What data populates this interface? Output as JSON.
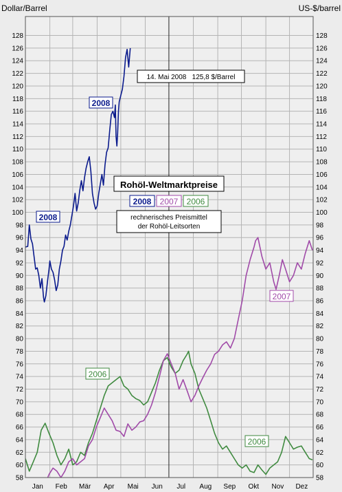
{
  "chart_data": {
    "type": "line",
    "ylabel_left": "Dollar/Barrel",
    "ylabel_right": "US-$/barrel",
    "title": "Rohöl-Weltmarktpreise",
    "legend_labels": [
      "2008",
      "2007",
      "2006"
    ],
    "subtitle_lines": [
      "rechnerisches Preismittel",
      "der Rohöl-Leitsorten"
    ],
    "annotation": "14. Mai 2008   125,8 $/Barrel",
    "ylim": [
      58,
      131
    ],
    "ytick_step": 2,
    "xlim": [
      0,
      365
    ],
    "months": [
      "Jan",
      "Feb",
      "Mär",
      "Apr",
      "Mai",
      "Jun",
      "Jul",
      "Aug",
      "Sep",
      "Okt",
      "Nov",
      "Dez"
    ],
    "series_labels": {
      "y2008_a": "2008",
      "y2008_b": "2008",
      "y2007": "2007",
      "y2006_a": "2006",
      "y2006_b": "2006"
    },
    "colors": {
      "y2008": "#0a1a8c",
      "y2007": "#a04aa8",
      "y2006": "#3f8a3f",
      "grid": "#b4b4b4",
      "center_line": "#222222",
      "background": "#ececec"
    },
    "series": [
      {
        "name": "2008",
        "color": "#0a1a8c",
        "points": [
          [
            0,
            94.5
          ],
          [
            3,
            94.6
          ],
          [
            5,
            98
          ],
          [
            7,
            95.8
          ],
          [
            9,
            95
          ],
          [
            11,
            93
          ],
          [
            13,
            91
          ],
          [
            15,
            91.2
          ],
          [
            17,
            90
          ],
          [
            19,
            88
          ],
          [
            21,
            89.5
          ],
          [
            23,
            86.5
          ],
          [
            24,
            85.8
          ],
          [
            26,
            86.8
          ],
          [
            28,
            89
          ],
          [
            30,
            91
          ],
          [
            31,
            92.3
          ],
          [
            33,
            91
          ],
          [
            35,
            90.5
          ],
          [
            37,
            89.3
          ],
          [
            39,
            87.6
          ],
          [
            41,
            88.5
          ],
          [
            43,
            91
          ],
          [
            45,
            92.3
          ],
          [
            47,
            94
          ],
          [
            49,
            94.6
          ],
          [
            51,
            96.4
          ],
          [
            53,
            95.6
          ],
          [
            55,
            97
          ],
          [
            57,
            98
          ],
          [
            59,
            99.5
          ],
          [
            61,
            101
          ],
          [
            63,
            103
          ],
          [
            65,
            100.2
          ],
          [
            67,
            101.5
          ],
          [
            69,
            103.5
          ],
          [
            71,
            105
          ],
          [
            73,
            103.4
          ],
          [
            75,
            105.5
          ],
          [
            77,
            107
          ],
          [
            79,
            108
          ],
          [
            81,
            108.8
          ],
          [
            83,
            106.5
          ],
          [
            85,
            103
          ],
          [
            87,
            101.5
          ],
          [
            89,
            100.5
          ],
          [
            91,
            101
          ],
          [
            93,
            103
          ],
          [
            95,
            104.5
          ],
          [
            97,
            106
          ],
          [
            99,
            104.3
          ],
          [
            101,
            107.5
          ],
          [
            103,
            109.5
          ],
          [
            105,
            110.2
          ],
          [
            107,
            113
          ],
          [
            109,
            115.5
          ],
          [
            111,
            116
          ],
          [
            113,
            115
          ],
          [
            114,
            117
          ],
          [
            115,
            112
          ],
          [
            116,
            110.5
          ],
          [
            117,
            112.5
          ],
          [
            118,
            116
          ],
          [
            119,
            117.5
          ],
          [
            121,
            118.5
          ],
          [
            123,
            119.5
          ],
          [
            125,
            121.5
          ],
          [
            127,
            124.5
          ],
          [
            129,
            125.8
          ],
          [
            131,
            123
          ],
          [
            133,
            126
          ]
        ]
      },
      {
        "name": "2007",
        "color": "#a04aa8",
        "points": [
          [
            0,
            55
          ],
          [
            10,
            56
          ],
          [
            20,
            55
          ],
          [
            25,
            57
          ],
          [
            30,
            58.5
          ],
          [
            35,
            59.5
          ],
          [
            40,
            59
          ],
          [
            45,
            58
          ],
          [
            50,
            59
          ],
          [
            55,
            60.5
          ],
          [
            60,
            61
          ],
          [
            65,
            60
          ],
          [
            70,
            60.5
          ],
          [
            75,
            61
          ],
          [
            80,
            63
          ],
          [
            85,
            64
          ],
          [
            90,
            66
          ],
          [
            95,
            67.5
          ],
          [
            100,
            69
          ],
          [
            105,
            68
          ],
          [
            110,
            67
          ],
          [
            115,
            65.5
          ],
          [
            120,
            65.3
          ],
          [
            125,
            64.5
          ],
          [
            130,
            66.5
          ],
          [
            135,
            65.5
          ],
          [
            140,
            66
          ],
          [
            145,
            66.8
          ],
          [
            150,
            67
          ],
          [
            155,
            68
          ],
          [
            160,
            69.5
          ],
          [
            165,
            71.5
          ],
          [
            170,
            74
          ],
          [
            175,
            76.5
          ],
          [
            180,
            77.6
          ],
          [
            185,
            76
          ],
          [
            190,
            74.5
          ],
          [
            195,
            72
          ],
          [
            200,
            73.5
          ],
          [
            205,
            71.8
          ],
          [
            210,
            70
          ],
          [
            215,
            71
          ],
          [
            220,
            72.5
          ],
          [
            225,
            73.8
          ],
          [
            230,
            75
          ],
          [
            235,
            76
          ],
          [
            240,
            77.5
          ],
          [
            245,
            78
          ],
          [
            250,
            79
          ],
          [
            255,
            79.5
          ],
          [
            260,
            78.5
          ],
          [
            265,
            80
          ],
          [
            270,
            83
          ],
          [
            275,
            86
          ],
          [
            280,
            90
          ],
          [
            285,
            92.5
          ],
          [
            290,
            94.5
          ],
          [
            292,
            95.5
          ],
          [
            295,
            96
          ],
          [
            300,
            93
          ],
          [
            305,
            91
          ],
          [
            310,
            92
          ],
          [
            315,
            89
          ],
          [
            318,
            87.8
          ],
          [
            322,
            90
          ],
          [
            326,
            92.5
          ],
          [
            330,
            91
          ],
          [
            335,
            89
          ],
          [
            340,
            90
          ],
          [
            345,
            92
          ],
          [
            350,
            91
          ],
          [
            355,
            93.5
          ],
          [
            360,
            95.5
          ],
          [
            364,
            94
          ]
        ]
      },
      {
        "name": "2006",
        "color": "#3f8a3f",
        "points": [
          [
            0,
            61
          ],
          [
            5,
            59
          ],
          [
            10,
            60.5
          ],
          [
            15,
            62
          ],
          [
            20,
            65.5
          ],
          [
            25,
            66.6
          ],
          [
            30,
            65
          ],
          [
            35,
            63.5
          ],
          [
            40,
            61.5
          ],
          [
            45,
            60
          ],
          [
            50,
            61
          ],
          [
            55,
            62.5
          ],
          [
            60,
            60
          ],
          [
            65,
            60.5
          ],
          [
            70,
            62
          ],
          [
            75,
            61.5
          ],
          [
            80,
            63.5
          ],
          [
            85,
            65
          ],
          [
            90,
            67
          ],
          [
            95,
            69
          ],
          [
            100,
            71
          ],
          [
            105,
            72.5
          ],
          [
            110,
            73
          ],
          [
            115,
            73.5
          ],
          [
            120,
            74
          ],
          [
            125,
            72.5
          ],
          [
            130,
            72
          ],
          [
            135,
            71
          ],
          [
            140,
            70.5
          ],
          [
            145,
            70.2
          ],
          [
            150,
            69.5
          ],
          [
            155,
            70
          ],
          [
            160,
            71.5
          ],
          [
            165,
            73
          ],
          [
            170,
            75
          ],
          [
            175,
            76.5
          ],
          [
            180,
            77
          ],
          [
            185,
            75.5
          ],
          [
            190,
            74.5
          ],
          [
            195,
            75
          ],
          [
            200,
            76.5
          ],
          [
            205,
            77.5
          ],
          [
            207,
            78
          ],
          [
            210,
            76
          ],
          [
            215,
            74.5
          ],
          [
            220,
            72
          ],
          [
            225,
            70.5
          ],
          [
            230,
            69
          ],
          [
            235,
            67
          ],
          [
            240,
            65
          ],
          [
            245,
            63.5
          ],
          [
            250,
            62.5
          ],
          [
            255,
            63
          ],
          [
            260,
            62
          ],
          [
            265,
            61
          ],
          [
            270,
            60
          ],
          [
            275,
            59.5
          ],
          [
            280,
            60
          ],
          [
            285,
            59
          ],
          [
            290,
            58.8
          ],
          [
            295,
            60
          ],
          [
            300,
            59.2
          ],
          [
            305,
            58.5
          ],
          [
            310,
            59.5
          ],
          [
            315,
            60
          ],
          [
            320,
            60.5
          ],
          [
            325,
            62
          ],
          [
            330,
            64.5
          ],
          [
            335,
            63.5
          ],
          [
            340,
            62.5
          ],
          [
            345,
            62.8
          ],
          [
            350,
            63
          ],
          [
            355,
            62
          ],
          [
            360,
            61
          ],
          [
            364,
            60.8
          ]
        ]
      }
    ]
  }
}
